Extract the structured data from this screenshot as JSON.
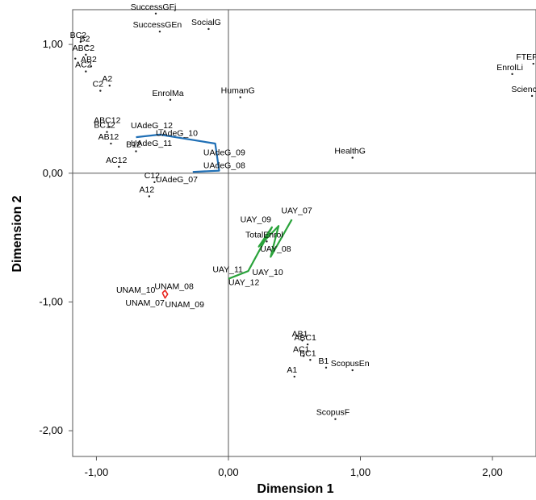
{
  "chart_data": {
    "type": "scatter",
    "xlabel": "Dimension 1",
    "ylabel": "Dimension 2",
    "xlim": [
      -1.18,
      2.33
    ],
    "ylim": [
      -2.2,
      1.27
    ],
    "x_ticks": [
      {
        "v": -1,
        "label": "-1,00"
      },
      {
        "v": 0,
        "label": "0,00"
      },
      {
        "v": 1,
        "label": "1,00"
      },
      {
        "v": 2,
        "label": "2,00"
      }
    ],
    "y_ticks": [
      {
        "v": 1,
        "label": "1,00"
      },
      {
        "v": 0,
        "label": "0,00"
      },
      {
        "v": -1,
        "label": "-1,00"
      },
      {
        "v": -2,
        "label": "-2,00"
      }
    ],
    "reference_lines": {
      "x": 0,
      "y": 0
    },
    "colors": {
      "uadeg": "#1f6fb5",
      "uay": "#2aa33b",
      "unam": "#e8251f",
      "points": "#222222",
      "axes": "#555555"
    },
    "points": [
      {
        "label": "SuccessGFj",
        "x": -0.55,
        "y": 1.24
      },
      {
        "label": "SocialG",
        "x": -0.15,
        "y": 1.12
      },
      {
        "label": "SuccessGEn",
        "x": -0.52,
        "y": 1.1
      },
      {
        "label": "BC2",
        "x": -1.12,
        "y": 1.02
      },
      {
        "label": "B2",
        "x": -1.07,
        "y": 0.99
      },
      {
        "label": "ABC2",
        "x": -1.08,
        "y": 0.92
      },
      {
        "label": "",
        "x": -1.16,
        "y": 0.89
      },
      {
        "label": "AB2",
        "x": -1.04,
        "y": 0.83
      },
      {
        "label": "AC2",
        "x": -1.08,
        "y": 0.79
      },
      {
        "label": "A2",
        "x": -0.9,
        "y": 0.68
      },
      {
        "label": "C2",
        "x": -0.97,
        "y": 0.64
      },
      {
        "label": "EnrolMa",
        "x": -0.44,
        "y": 0.57
      },
      {
        "label": "HumanG",
        "x": 0.09,
        "y": 0.59
      },
      {
        "label": "ABC12",
        "x": -0.9,
        "y": 0.36
      },
      {
        "label": "BC12",
        "x": -0.92,
        "y": 0.32
      },
      {
        "label": "AB12",
        "x": -0.89,
        "y": 0.23
      },
      {
        "label": "B12",
        "x": -0.7,
        "y": 0.17
      },
      {
        "label": "AC12",
        "x": -0.83,
        "y": 0.05
      },
      {
        "label": "C12",
        "x": -0.56,
        "y": -0.07
      },
      {
        "label": "A12",
        "x": -0.6,
        "y": -0.18
      },
      {
        "label": "HealthG",
        "x": 0.94,
        "y": 0.12
      },
      {
        "label": "FTEFTc",
        "x": 2.31,
        "y": 0.85
      },
      {
        "label": "EnrolLi",
        "x": 2.15,
        "y": 0.77
      },
      {
        "label": "ScienceG",
        "x": 2.3,
        "y": 0.6
      },
      {
        "label": "TotalEnrol",
        "x": 0.29,
        "y": -0.53
      },
      {
        "label": "AB1",
        "x": 0.56,
        "y": -1.3
      },
      {
        "label": "ABC1",
        "x": 0.6,
        "y": -1.33
      },
      {
        "label": "AC1",
        "x": 0.57,
        "y": -1.42
      },
      {
        "label": "BC1",
        "x": 0.62,
        "y": -1.45
      },
      {
        "label": "B1",
        "x": 0.74,
        "y": -1.51
      },
      {
        "label": "ScopusEn",
        "x": 0.94,
        "y": -1.53
      },
      {
        "label": "A1",
        "x": 0.5,
        "y": -1.58
      },
      {
        "label": "ScopusF",
        "x": 0.81,
        "y": -1.91
      }
    ],
    "series": [
      {
        "name": "UAdeG",
        "color": "#1f6fb5",
        "x": [
          -0.27,
          -0.07,
          -0.1,
          -0.52,
          -0.7
        ],
        "y": [
          0.01,
          0.02,
          0.23,
          0.3,
          0.28
        ],
        "labels": [
          {
            "text": "UAdeG_12",
            "x": -0.74,
            "y": 0.35
          },
          {
            "text": "UAdeG_10",
            "x": -0.55,
            "y": 0.29
          },
          {
            "text": "UAdeG_11",
            "x": -0.74,
            "y": 0.21
          },
          {
            "text": "UAdeG_09",
            "x": -0.19,
            "y": 0.14
          },
          {
            "text": "UAdeG_08",
            "x": -0.19,
            "y": 0.04
          },
          {
            "text": "UAdeG_07",
            "x": -0.55,
            "y": -0.07
          }
        ]
      },
      {
        "name": "UAY",
        "color": "#2aa33b",
        "x": [
          0.0,
          0.15,
          0.33,
          0.23,
          0.38,
          0.32,
          0.48
        ],
        "y": [
          -0.82,
          -0.76,
          -0.42,
          -0.57,
          -0.41,
          -0.65,
          -0.36
        ],
        "labels": [
          {
            "text": "UAY_07",
            "x": 0.4,
            "y": -0.31
          },
          {
            "text": "UAY_09",
            "x": 0.09,
            "y": -0.38
          },
          {
            "text": "UAY_08",
            "x": 0.24,
            "y": -0.61
          },
          {
            "text": "UAY_11",
            "x": -0.12,
            "y": -0.77
          },
          {
            "text": "UAY_10",
            "x": 0.18,
            "y": -0.79
          },
          {
            "text": "UAY_12",
            "x": 0.0,
            "y": -0.87
          }
        ]
      },
      {
        "name": "UNAM",
        "color": "#e8251f",
        "x": [
          -0.5,
          -0.48,
          -0.46,
          -0.48,
          -0.5
        ],
        "y": [
          -0.93,
          -0.91,
          -0.94,
          -0.97,
          -0.93
        ],
        "labels": [
          {
            "text": "UNAM_10",
            "x": -0.85,
            "y": -0.93
          },
          {
            "text": "UNAM_08",
            "x": -0.56,
            "y": -0.9
          },
          {
            "text": "UNAM_07",
            "x": -0.78,
            "y": -1.03
          },
          {
            "text": "UNAM_09",
            "x": -0.48,
            "y": -1.04
          }
        ]
      }
    ]
  }
}
